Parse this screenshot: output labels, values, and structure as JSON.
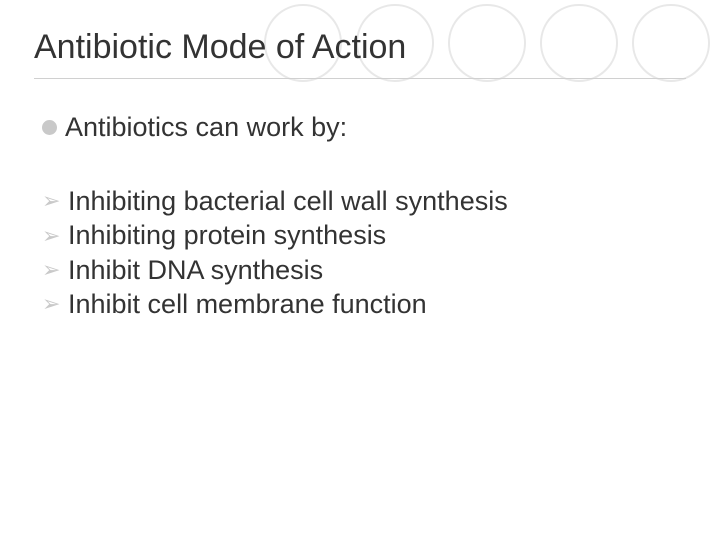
{
  "slide": {
    "title": "Antibiotic Mode of Action",
    "intro": "Antibiotics can work by:",
    "items": [
      "Inhibiting bacterial cell wall synthesis",
      "Inhibiting protein synthesis",
      "Inhibit DNA synthesis",
      "Inhibit cell membrane function"
    ]
  },
  "style": {
    "circle_count": 5,
    "circle_border_color": "#e8e8e8",
    "bullet_color": "#c9c9c9",
    "text_color": "#333333",
    "divider_color": "#d0d0d0",
    "background_color": "#ffffff",
    "title_fontsize": 34,
    "body_fontsize": 27
  }
}
